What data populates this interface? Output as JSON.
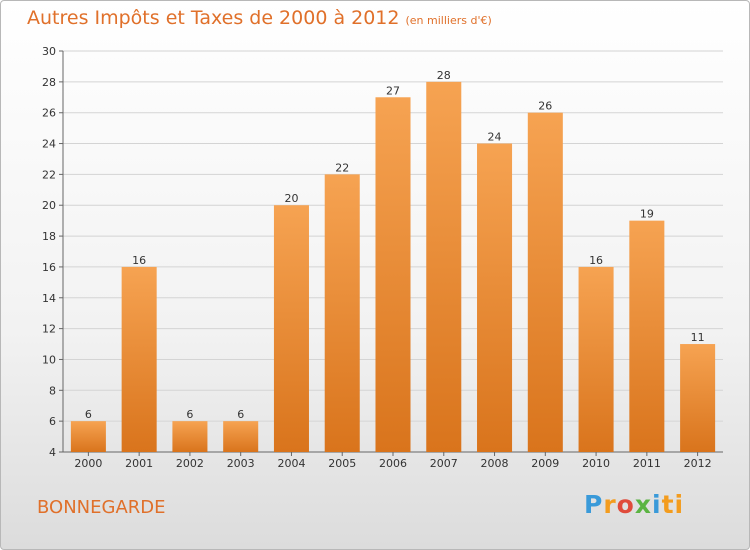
{
  "title": "Autres Impôts et Taxes de 2000 à 2012",
  "unit": "(en milliers d'€)",
  "place": "BONNEGARDE",
  "brand": [
    "P",
    "r",
    "o",
    "x",
    "i",
    "ti"
  ],
  "colors": {
    "bar": "#f0923e",
    "bar_dark": "#d9741c",
    "accent": "#e0702a"
  },
  "chart_data": {
    "type": "bar",
    "categories": [
      "2000",
      "2001",
      "2002",
      "2003",
      "2004",
      "2005",
      "2006",
      "2007",
      "2008",
      "2009",
      "2010",
      "2011",
      "2012"
    ],
    "values": [
      6,
      16,
      6,
      6,
      20,
      22,
      27,
      28,
      24,
      26,
      16,
      19,
      11
    ],
    "ylim": [
      4,
      30
    ],
    "yticks": [
      4,
      6,
      8,
      10,
      12,
      14,
      16,
      18,
      20,
      22,
      24,
      26,
      28,
      30
    ],
    "grid": true,
    "xlabel": "",
    "ylabel": ""
  }
}
